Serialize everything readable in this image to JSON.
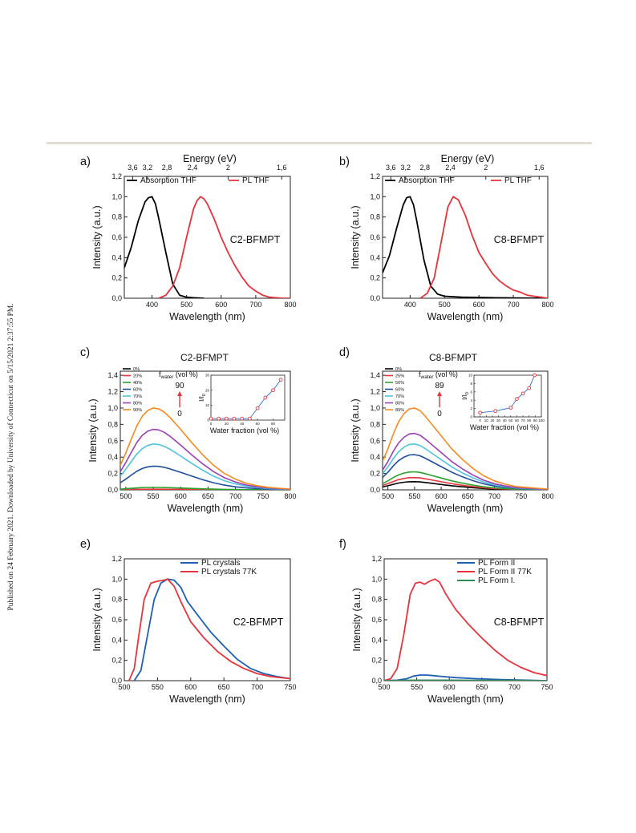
{
  "side_note": "Published on 24 February 2021. Downloaded by University of Connecticut on 5/15/2021 2:37:55 PM.",
  "chart_data": [
    {
      "id": "a",
      "panel_label": "a)",
      "type": "line",
      "xlabel": "Wavelength (nm)",
      "ylabel": "Intensity (a.u.)",
      "xlim": [
        320,
        800
      ],
      "ylim": [
        0,
        1.2
      ],
      "xticks": [
        400,
        500,
        600,
        700,
        800
      ],
      "yticks": [
        0,
        0.2,
        0.4,
        0.6,
        0.8,
        1.0,
        1.2
      ],
      "yticklabels": [
        "0,0",
        "0,2",
        "0,4",
        "0,6",
        "0,8",
        "1,0",
        "1,2"
      ],
      "top_axis": {
        "label": "Energy (eV)",
        "ticks": [
          {
            "text": "3,6",
            "x": 344
          },
          {
            "text": "3,2",
            "x": 387
          },
          {
            "text": "2,8",
            "x": 443
          },
          {
            "text": "2,4",
            "x": 517
          },
          {
            "text": "2",
            "x": 620
          },
          {
            "text": "1,6",
            "x": 775
          }
        ]
      },
      "annotation": "C2-BFMPT",
      "legend": [
        {
          "name": "Absorption THF",
          "color": "#000000"
        },
        {
          "name": "PL THF",
          "color": "#e8333c"
        }
      ],
      "series": [
        {
          "name": "Absorption THF",
          "color": "#000000",
          "x": [
            320,
            340,
            360,
            380,
            390,
            400,
            410,
            420,
            440,
            460,
            480,
            500,
            520,
            550
          ],
          "y": [
            0.3,
            0.5,
            0.76,
            0.95,
            0.99,
            1.0,
            0.93,
            0.78,
            0.45,
            0.14,
            0.03,
            0.01,
            0.005,
            0.0
          ]
        },
        {
          "name": "PL THF",
          "color": "#e8333c",
          "x": [
            420,
            440,
            460,
            480,
            500,
            520,
            530,
            540,
            550,
            560,
            580,
            600,
            620,
            640,
            660,
            680,
            700,
            720,
            740,
            760,
            780,
            800
          ],
          "y": [
            0.0,
            0.03,
            0.12,
            0.3,
            0.6,
            0.88,
            0.96,
            1.0,
            0.98,
            0.93,
            0.78,
            0.6,
            0.45,
            0.32,
            0.21,
            0.12,
            0.07,
            0.03,
            0.01,
            0.005,
            0.0,
            0.0
          ]
        }
      ]
    },
    {
      "id": "b",
      "panel_label": "b)",
      "type": "line",
      "xlabel": "Wavelength (nm)",
      "ylabel": "Intensity (a.u.)",
      "xlim": [
        320,
        800
      ],
      "ylim": [
        0,
        1.2
      ],
      "xticks": [
        400,
        500,
        600,
        700,
        800
      ],
      "yticks": [
        0,
        0.2,
        0.4,
        0.6,
        0.8,
        1.0,
        1.2
      ],
      "yticklabels": [
        "0,0",
        "0,2",
        "0,4",
        "0,6",
        "0,8",
        "1,0",
        "1,2"
      ],
      "top_axis": {
        "label": "Energy (eV)",
        "ticks": [
          {
            "text": "3,6",
            "x": 344
          },
          {
            "text": "3,2",
            "x": 387
          },
          {
            "text": "2,8",
            "x": 443
          },
          {
            "text": "2,4",
            "x": 517
          },
          {
            "text": "2",
            "x": 620
          },
          {
            "text": "1,6",
            "x": 775
          }
        ]
      },
      "annotation": "C8-BFMPT",
      "legend": [
        {
          "name": "Absorption THF",
          "color": "#000000"
        },
        {
          "name": "PL  THF",
          "color": "#e8333c"
        }
      ],
      "series": [
        {
          "name": "Absorption THF",
          "color": "#000000",
          "x": [
            320,
            340,
            360,
            380,
            390,
            400,
            410,
            420,
            440,
            460,
            480,
            500,
            550,
            600,
            650,
            700,
            800
          ],
          "y": [
            0.25,
            0.42,
            0.68,
            0.92,
            0.99,
            1.0,
            0.92,
            0.75,
            0.38,
            0.12,
            0.04,
            0.02,
            0.01,
            0.008,
            0.005,
            0.003,
            0.0
          ]
        },
        {
          "name": "PL  THF",
          "color": "#e8333c",
          "x": [
            430,
            450,
            470,
            490,
            510,
            525,
            540,
            560,
            580,
            600,
            620,
            640,
            660,
            680,
            700,
            720,
            740,
            760,
            780,
            800
          ],
          "y": [
            0.0,
            0.05,
            0.2,
            0.55,
            0.9,
            1.0,
            0.97,
            0.82,
            0.62,
            0.45,
            0.34,
            0.24,
            0.17,
            0.12,
            0.08,
            0.06,
            0.03,
            0.02,
            0.01,
            0.0
          ]
        }
      ]
    },
    {
      "id": "c",
      "panel_label": "c)",
      "title": "C2-BFMPT",
      "type": "line",
      "xlabel": "Wavelength (nm)",
      "ylabel": "Intensity (a.u.)",
      "xlim": [
        490,
        800
      ],
      "ylim": [
        0,
        1.45
      ],
      "xticks": [
        500,
        550,
        600,
        650,
        700,
        750,
        800
      ],
      "yticks": [
        0,
        0.2,
        0.4,
        0.6,
        0.8,
        1.0,
        1.2,
        1.4
      ],
      "yticklabels": [
        "0,0",
        "0,2",
        "0,4",
        "0,6",
        "0,8",
        "1,0",
        "1,2",
        "1,4"
      ],
      "legend": [
        {
          "name": "0%",
          "color": "#000000"
        },
        {
          "name": "20%",
          "color": "#e8333c"
        },
        {
          "name": "40%",
          "color": "#2ca02c"
        },
        {
          "name": "60%",
          "color": "#1f4e9a"
        },
        {
          "name": "70%",
          "color": "#4fc3dc"
        },
        {
          "name": "80%",
          "color": "#9b3fb4"
        },
        {
          "name": "90%",
          "color": "#f58a1f"
        }
      ],
      "fwater": {
        "label": "f",
        "sub": "water",
        "unit": " (vol %)",
        "top": "90",
        "bottom": "0"
      },
      "peak_scale": [
        0.005,
        0.008,
        0.03,
        0.29,
        0.56,
        0.74,
        1.0
      ],
      "shape": {
        "x": [
          490,
          500,
          510,
          520,
          530,
          540,
          550,
          560,
          570,
          580,
          600,
          620,
          640,
          660,
          680,
          700,
          720,
          740,
          760,
          780,
          800
        ],
        "y": [
          0.3,
          0.45,
          0.62,
          0.78,
          0.9,
          0.97,
          1.0,
          0.99,
          0.95,
          0.89,
          0.74,
          0.58,
          0.43,
          0.3,
          0.2,
          0.13,
          0.08,
          0.05,
          0.03,
          0.02,
          0.01
        ]
      },
      "inset": {
        "xlabel": "Water fraction (vol %)",
        "ylabel": "I/I",
        "ysub": "0",
        "xlim": [
          0,
          95
        ],
        "ylim": [
          0,
          30
        ],
        "xticks": [
          0,
          20,
          40,
          60,
          80
        ],
        "yticks": [
          0,
          10,
          20,
          30
        ],
        "x": [
          0,
          10,
          20,
          30,
          40,
          50,
          60,
          70,
          80,
          90
        ],
        "y": [
          1,
          1,
          1,
          1,
          1,
          1,
          8,
          15,
          20,
          27
        ]
      }
    },
    {
      "id": "d",
      "panel_label": "d)",
      "title": "C8-BFMPT",
      "type": "line",
      "xlabel": "Wavelength (nm)",
      "ylabel": "Intensity (a.u.)",
      "xlim": [
        490,
        800
      ],
      "ylim": [
        0,
        1.45
      ],
      "xticks": [
        500,
        550,
        600,
        650,
        700,
        750,
        800
      ],
      "yticks": [
        0,
        0.2,
        0.4,
        0.6,
        0.8,
        1.0,
        1.2,
        1.4
      ],
      "yticklabels": [
        "0,0",
        "0,2",
        "0,4",
        "0,6",
        "0,8",
        "1,0",
        "1,2",
        "1,4"
      ],
      "legend": [
        {
          "name": "0%",
          "color": "#000000"
        },
        {
          "name": "25%",
          "color": "#e8333c"
        },
        {
          "name": "50%",
          "color": "#2ca02c"
        },
        {
          "name": "60%",
          "color": "#1f4e9a"
        },
        {
          "name": "70%",
          "color": "#4fc3dc"
        },
        {
          "name": "80%",
          "color": "#9b3fb4"
        },
        {
          "name": "89%",
          "color": "#f58a1f"
        }
      ],
      "fwater": {
        "label": "f",
        "sub": "water",
        "unit": " (vol %)",
        "top": "89",
        "bottom": "0"
      },
      "peak_scale": [
        0.1,
        0.15,
        0.22,
        0.43,
        0.56,
        0.69,
        1.0
      ],
      "shape": {
        "x": [
          490,
          500,
          510,
          520,
          530,
          540,
          550,
          560,
          570,
          580,
          600,
          620,
          640,
          660,
          680,
          700,
          720,
          740,
          760,
          780,
          800
        ],
        "y": [
          0.35,
          0.5,
          0.68,
          0.83,
          0.93,
          0.99,
          1.0,
          0.97,
          0.9,
          0.82,
          0.66,
          0.5,
          0.37,
          0.26,
          0.17,
          0.11,
          0.07,
          0.04,
          0.03,
          0.02,
          0.01
        ]
      },
      "inset": {
        "xlabel": "Water fraction (vol %)",
        "ylabel": "I/I",
        "ysub": "0",
        "xlim": [
          -10,
          100
        ],
        "ylim": [
          0,
          10
        ],
        "xticks": [
          0,
          10,
          20,
          30,
          40,
          50,
          60,
          70,
          80,
          90,
          100
        ],
        "yticks": [
          0,
          2,
          4,
          6,
          8,
          10
        ],
        "x": [
          0,
          25,
          50,
          60,
          70,
          80,
          89
        ],
        "y": [
          1,
          1.4,
          2.2,
          4.3,
          5.6,
          6.9,
          10
        ]
      }
    },
    {
      "id": "e",
      "panel_label": "e)",
      "type": "line",
      "xlabel": "Wavelength (nm)",
      "ylabel": "Intensity (a.u.)",
      "xlim": [
        500,
        750
      ],
      "ylim": [
        0,
        1.2
      ],
      "xticks": [
        500,
        550,
        600,
        650,
        700,
        750
      ],
      "yticks": [
        0,
        0.2,
        0.4,
        0.6,
        0.8,
        1.0,
        1.2
      ],
      "yticklabels": [
        "0,0",
        "0,2",
        "0,4",
        "0,6",
        "0,8",
        "1,0",
        "1,2"
      ],
      "annotation": "C2-BFMPT",
      "legend": [
        {
          "name": "PL crystals",
          "color": "#1f5fb4"
        },
        {
          "name": "PL crystals 77K",
          "color": "#e8333c"
        }
      ],
      "series": [
        {
          "name": "PL crystals",
          "color": "#1f5fb4",
          "x": [
            515,
            525,
            535,
            545,
            555,
            565,
            575,
            585,
            595,
            610,
            630,
            650,
            670,
            690,
            710,
            730,
            750
          ],
          "y": [
            0.0,
            0.1,
            0.45,
            0.8,
            0.96,
            1.0,
            0.99,
            0.92,
            0.78,
            0.65,
            0.48,
            0.34,
            0.21,
            0.12,
            0.07,
            0.04,
            0.02
          ]
        },
        {
          "name": "PL crystals 77K",
          "color": "#e8333c",
          "x": [
            507,
            515,
            522,
            530,
            540,
            550,
            560,
            565,
            575,
            585,
            600,
            620,
            640,
            660,
            680,
            700,
            720,
            750
          ],
          "y": [
            0.0,
            0.12,
            0.45,
            0.8,
            0.96,
            0.98,
            0.99,
            1.0,
            0.93,
            0.78,
            0.58,
            0.42,
            0.29,
            0.19,
            0.12,
            0.07,
            0.04,
            0.02
          ]
        }
      ]
    },
    {
      "id": "f",
      "panel_label": "f)",
      "type": "line",
      "xlabel": "Wavelength (nm)",
      "ylabel": "Intensity (a.u.)",
      "xlim": [
        500,
        750
      ],
      "ylim": [
        0,
        1.2
      ],
      "xticks": [
        500,
        550,
        600,
        650,
        700,
        750
      ],
      "yticks": [
        0,
        0.2,
        0.4,
        0.6,
        0.8,
        1.0,
        1.2
      ],
      "yticklabels": [
        "0,0",
        "0,2",
        "0,4",
        "0,6",
        "0,8",
        "1,0",
        "1,2"
      ],
      "annotation": "C8-BFMPT",
      "legend": [
        {
          "name": "PL Form II",
          "color": "#1f5fb4"
        },
        {
          "name": "PL Form II 77K",
          "color": "#e8333c"
        },
        {
          "name": "PL Form I.",
          "color": "#2e8b57"
        }
      ],
      "series": [
        {
          "name": "PL Form II",
          "color": "#1f5fb4",
          "x": [
            500,
            520,
            535,
            545,
            555,
            565,
            575,
            590,
            610,
            640,
            680,
            720,
            750
          ],
          "y": [
            0.0,
            0.005,
            0.02,
            0.045,
            0.055,
            0.055,
            0.05,
            0.04,
            0.03,
            0.02,
            0.01,
            0.005,
            0.0
          ]
        },
        {
          "name": "PL Form II 77K",
          "color": "#e8333c",
          "x": [
            500,
            510,
            520,
            530,
            540,
            548,
            555,
            562,
            570,
            578,
            585,
            595,
            610,
            630,
            650,
            670,
            690,
            710,
            730,
            750
          ],
          "y": [
            0.0,
            0.02,
            0.12,
            0.45,
            0.85,
            0.96,
            0.97,
            0.95,
            0.98,
            1.0,
            0.97,
            0.85,
            0.7,
            0.55,
            0.42,
            0.3,
            0.2,
            0.13,
            0.08,
            0.05
          ]
        },
        {
          "name": "PL Form I.",
          "color": "#2e8b57",
          "x": [
            500,
            550,
            600,
            650,
            700,
            750
          ],
          "y": [
            0.0,
            0.005,
            0.005,
            0.003,
            0.002,
            0.0
          ]
        }
      ]
    }
  ]
}
